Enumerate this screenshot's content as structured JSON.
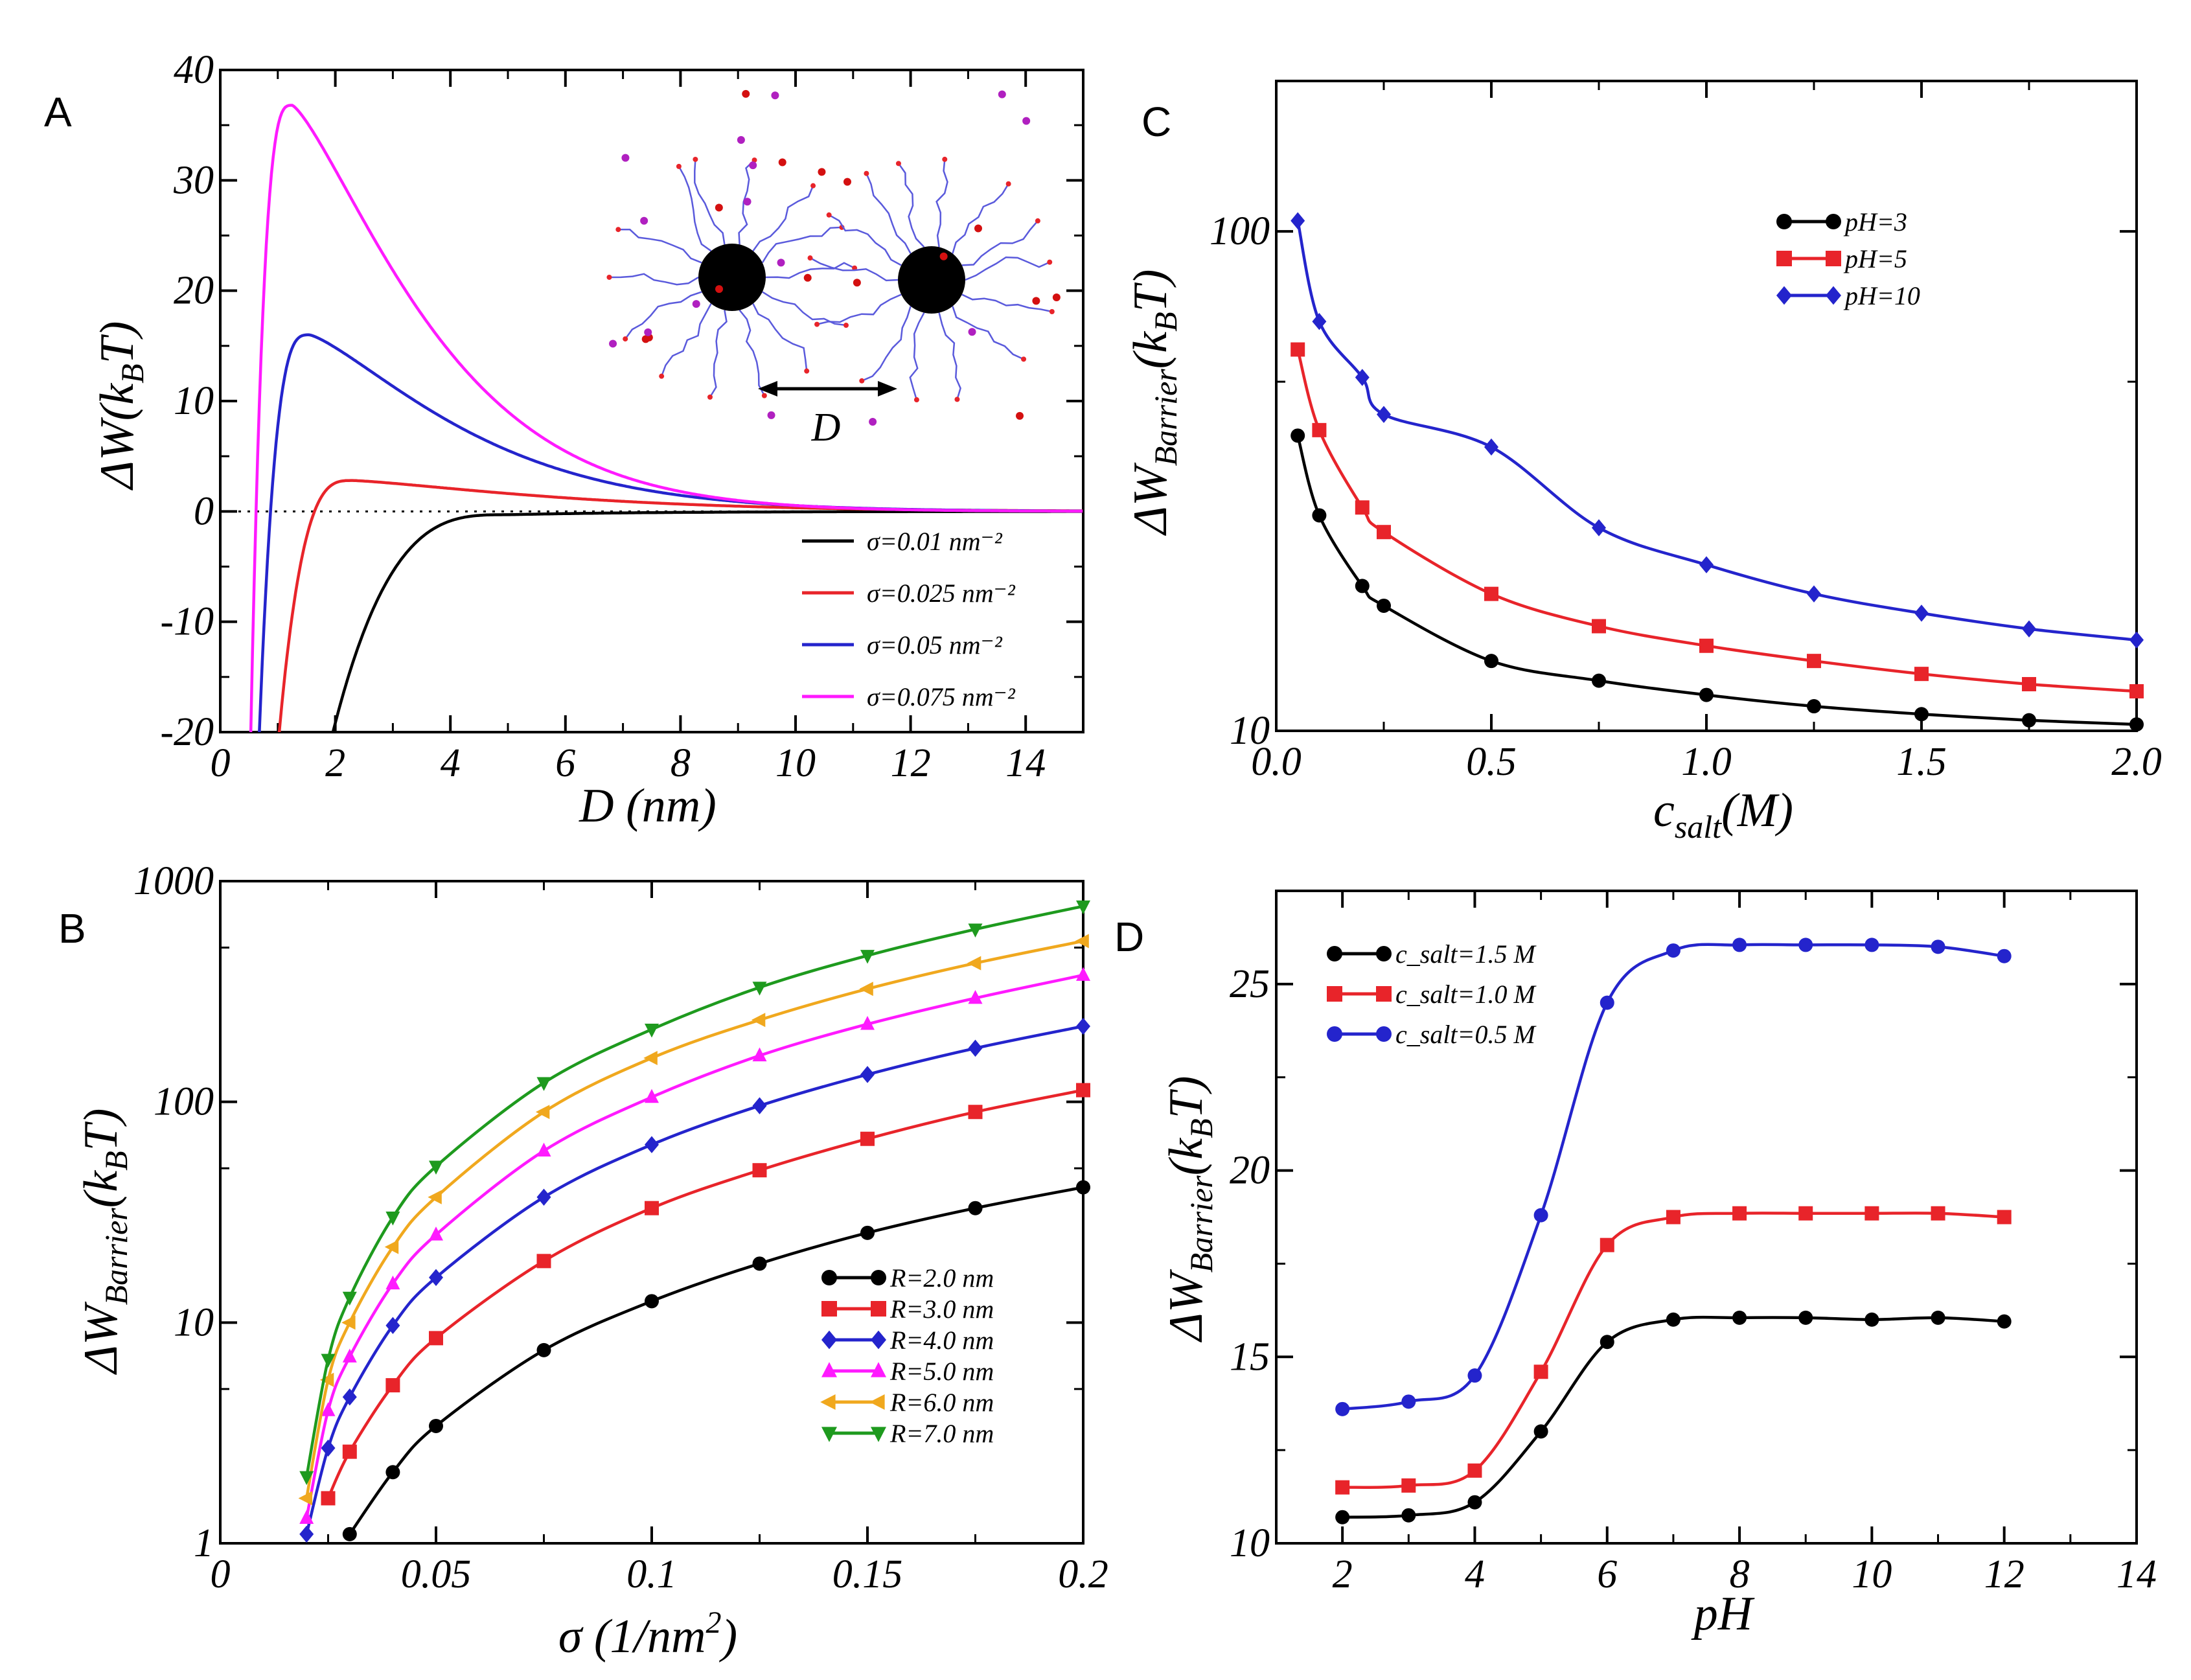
{
  "chart_data": [
    {
      "panel": "A",
      "type": "line",
      "xlabel": "D (nm)",
      "ylabel": "ΔW(k_B T)",
      "xlim": [
        0,
        15
      ],
      "ylim": [
        -20,
        40
      ],
      "xticks": [
        0,
        2,
        4,
        6,
        8,
        10,
        12,
        14
      ],
      "yticks": [
        -20,
        -10,
        0,
        10,
        20,
        30,
        40
      ],
      "xtick_labels": [
        "0",
        "2",
        "4",
        "6",
        "8",
        "10",
        "12",
        "14"
      ],
      "ytick_labels": [
        "-20",
        "-10",
        "0",
        "10",
        "20",
        "30",
        "40"
      ],
      "reference_line": {
        "y": 0,
        "style": "dotted"
      },
      "series": [
        {
          "name": "σ=0.01   nm⁻²",
          "color": "#000000",
          "peak_x": 5.0,
          "peak_y": -0.3,
          "x0": 0.7
        },
        {
          "name": "σ=0.025 nm⁻²",
          "color": "#e8242a",
          "peak_x": 2.3,
          "peak_y": 2.8,
          "x0": 0.55
        },
        {
          "name": "σ=0.05   nm⁻²",
          "color": "#2424cc",
          "peak_x": 1.55,
          "peak_y": 16.0,
          "x0": 0.45
        },
        {
          "name": "σ=0.075 nm⁻²",
          "color": "#ff1aff",
          "peak_x": 1.25,
          "peak_y": 36.8,
          "x0": 0.4
        }
      ],
      "inset_label": "D"
    },
    {
      "panel": "B",
      "type": "line",
      "xlabel": "σ (1/nm²)",
      "ylabel": "ΔW_Barrier(k_B T)",
      "yscale": "log",
      "xlim": [
        0,
        0.2
      ],
      "ylim": [
        1,
        1000
      ],
      "xticks": [
        0,
        0.05,
        0.1,
        0.15,
        0.2
      ],
      "xtick_labels": [
        "0",
        "0.05",
        "0.1",
        "0.15",
        "0.2"
      ],
      "yticks": [
        1,
        10,
        100,
        1000
      ],
      "ytick_labels": [
        "1",
        "10",
        "100",
        "1000"
      ],
      "x": [
        0.02,
        0.025,
        0.03,
        0.04,
        0.05,
        0.075,
        0.1,
        0.125,
        0.15,
        0.175,
        0.2
      ],
      "series": [
        {
          "name": "R=2.0 nm",
          "color": "#000000",
          "marker": "circle",
          "values": [
            null,
            null,
            1.1,
            2.1,
            3.4,
            7.5,
            12.5,
            18.5,
            25.5,
            33,
            41
          ]
        },
        {
          "name": "R=3.0 nm",
          "color": "#e8242a",
          "marker": "square",
          "values": [
            null,
            1.6,
            2.6,
            5.2,
            8.5,
            19,
            33,
            49,
            68,
            90,
            113
          ]
        },
        {
          "name": "R=4.0 nm",
          "color": "#2424cc",
          "marker": "diamond",
          "values": [
            1.1,
            2.7,
            4.6,
            9.7,
            16,
            37,
            64,
            96,
            133,
            175,
            220
          ]
        },
        {
          "name": "R=5.0 nm",
          "color": "#ff1aff",
          "marker": "triangle-up",
          "values": [
            1.3,
            4.0,
            7.0,
            15,
            25,
            60,
            105,
            162,
            225,
            295,
            375
          ]
        },
        {
          "name": "R=6.0 nm",
          "color": "#f0a81e",
          "marker": "triangle-left",
          "values": [
            1.6,
            5.5,
            10,
            22,
            37,
            90,
            158,
            235,
            325,
            425,
            535
          ]
        },
        {
          "name": "R=7.0 nm",
          "color": "#1e9a1e",
          "marker": "triangle-down",
          "values": [
            2.0,
            6.8,
            13,
            30,
            51,
            122,
            213,
            330,
            460,
            605,
            770
          ]
        }
      ]
    },
    {
      "panel": "C",
      "type": "line",
      "xlabel": "c_salt(M)",
      "ylabel": "ΔW_Barrier(k_B T)",
      "yscale": "log",
      "xlim": [
        0,
        2
      ],
      "ylim": [
        10,
        200
      ],
      "xticks": [
        0,
        0.5,
        1.0,
        1.5,
        2.0
      ],
      "xtick_labels": [
        "0.0",
        "0.5",
        "1.0",
        "1.5",
        "2.0"
      ],
      "yticks": [
        10,
        100
      ],
      "ytick_labels": [
        "10",
        "100"
      ],
      "x": [
        0.05,
        0.1,
        0.2,
        0.25,
        0.5,
        0.75,
        1.0,
        1.25,
        1.5,
        1.75,
        2.0
      ],
      "series": [
        {
          "name": "pH=3",
          "color": "#000000",
          "marker": "circle",
          "values": [
            39,
            27,
            19.5,
            17.8,
            13.8,
            12.6,
            11.8,
            11.2,
            10.8,
            10.5,
            10.3
          ]
        },
        {
          "name": "pH=5",
          "color": "#e8242a",
          "marker": "square",
          "values": [
            58,
            40,
            28,
            25,
            18.8,
            16.2,
            14.8,
            13.8,
            13.0,
            12.4,
            12.0
          ]
        },
        {
          "name": "pH=10",
          "color": "#2424cc",
          "marker": "diamond",
          "values": [
            105,
            66,
            51,
            43,
            37,
            25.5,
            21.5,
            18.8,
            17.2,
            16.0,
            15.2
          ]
        }
      ]
    },
    {
      "panel": "D",
      "type": "line",
      "xlabel": "pH",
      "ylabel": "ΔW_Barrier(k_B T)",
      "xlim": [
        1,
        14
      ],
      "ylim": [
        10,
        27.5
      ],
      "xticks": [
        2,
        4,
        6,
        8,
        10,
        12,
        14
      ],
      "xtick_labels": [
        "2",
        "4",
        "6",
        "8",
        "10",
        "12",
        "14"
      ],
      "yticks": [
        10,
        15,
        20,
        25
      ],
      "ytick_labels": [
        "10",
        "15",
        "20",
        "25"
      ],
      "x": [
        2,
        3,
        4,
        5,
        6,
        7,
        8,
        9,
        10,
        11,
        12
      ],
      "series": [
        {
          "name": "c_salt=1.5 M",
          "color": "#000000",
          "marker": "circle",
          "values": [
            10.7,
            10.75,
            11.1,
            13.0,
            15.4,
            16.0,
            16.05,
            16.05,
            16.0,
            16.05,
            15.95
          ]
        },
        {
          "name": "c_salt=1.0 M",
          "color": "#e8242a",
          "marker": "square",
          "values": [
            11.5,
            11.55,
            11.95,
            14.6,
            18.0,
            18.75,
            18.85,
            18.85,
            18.85,
            18.85,
            18.75
          ]
        },
        {
          "name": "c_salt=0.5 M",
          "color": "#2424cc",
          "marker": "circle",
          "values": [
            13.6,
            13.8,
            14.5,
            18.8,
            24.5,
            25.9,
            26.05,
            26.05,
            26.05,
            26.0,
            25.75
          ]
        }
      ]
    }
  ],
  "panel_labels": {
    "a": "A",
    "b": "B",
    "c": "C",
    "d": "D"
  },
  "text": {
    "a_xlabel": "D (nm)",
    "a_ylabel_main": "ΔW(k",
    "a_ylabel_sub": "B",
    "a_ylabel_end": "T)",
    "b_xlabel": "σ (1/nm",
    "b_xlabel_sup": "2",
    "b_xlabel_end": ")",
    "barrier_ylabel_main": "ΔW",
    "barrier_ylabel_sub": "Barrier",
    "barrier_ylabel_mid": "(k",
    "barrier_ylabel_sub2": "B",
    "barrier_ylabel_end": "T)",
    "c_xlabel_main": "c",
    "c_xlabel_sub": "salt",
    "c_xlabel_end": "(M)",
    "d_xlabel": "pH",
    "inset_label": "D"
  }
}
